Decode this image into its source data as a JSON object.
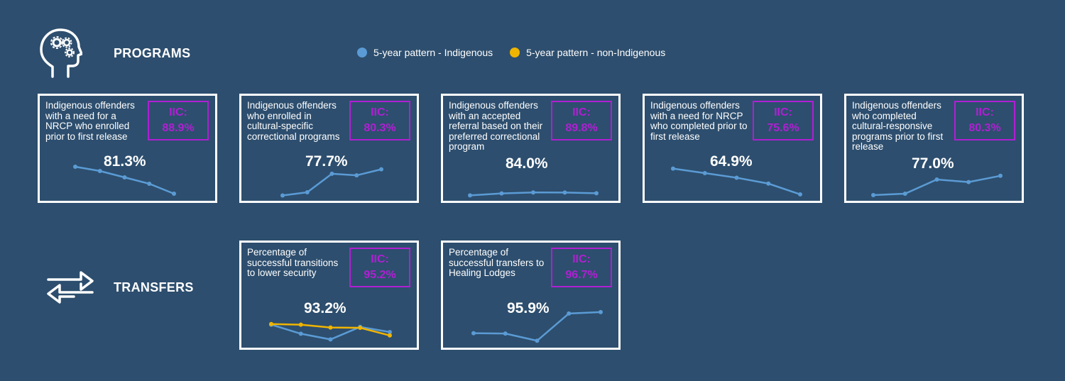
{
  "colors": {
    "background": "#2d4e6e",
    "indigenous": "#5b9bd5",
    "non_indigenous": "#f0b400",
    "iic": "#b01fd3",
    "border": "#ffffff"
  },
  "sections": {
    "programs": {
      "title": "PROGRAMS",
      "icon": "head-gears-icon"
    },
    "transfers": {
      "title": "TRANSFERS",
      "icon": "transfer-arrows-icon"
    }
  },
  "legend": {
    "indigenous": "5-year pattern - Indigenous",
    "non_indigenous": "5-year pattern - non-Indigenous"
  },
  "iic_label": "IIC:",
  "cards": [
    {
      "desc": "Indigenous offenders with a need for a NRCP who enrolled prior to first release",
      "iic": "88.9%",
      "value": "81.3%",
      "indigenous": [
        8.8,
        7.6,
        5.8,
        4.0,
        1.2
      ]
    },
    {
      "desc": "Indigenous offenders who enrolled in cultural-specific correctional programs",
      "iic": "80.3%",
      "value": "77.7%",
      "indigenous": [
        1.0,
        2.0,
        7.8,
        7.3,
        9.2
      ]
    },
    {
      "desc": "Indigenous offenders with an accepted referral based on their preferred correctional program",
      "iic": "89.8%",
      "value": "84.0%",
      "indigenous": [
        1.8,
        3.2,
        3.9,
        3.8,
        3.3
      ]
    },
    {
      "desc": "Indigenous offenders with a need for NRCP who completed prior to first release",
      "iic": "75.6%",
      "value": "64.9%",
      "indigenous": [
        9.0,
        7.6,
        6.2,
        4.4,
        1.1
      ]
    },
    {
      "desc": "Indigenous offenders who completed cultural-responsive programs prior to first release",
      "iic": "80.3%",
      "value": "77.0%",
      "indigenous": [
        1.0,
        1.5,
        6.5,
        5.6,
        7.8
      ]
    },
    {
      "desc": "Percentage of successful transitions to lower security",
      "iic": "95.2%",
      "value": "93.2%",
      "indigenous": [
        7.6,
        4.4,
        2.4,
        6.8,
        5.0
      ],
      "non_indigenous": [
        7.8,
        7.6,
        6.6,
        6.5,
        3.8
      ]
    },
    {
      "desc": "Percentage of successful transfers to Healing Lodges",
      "iic": "96.7%",
      "value": "95.9%",
      "indigenous": [
        3.4,
        3.3,
        1.2,
        9.2,
        9.6
      ]
    }
  ]
}
